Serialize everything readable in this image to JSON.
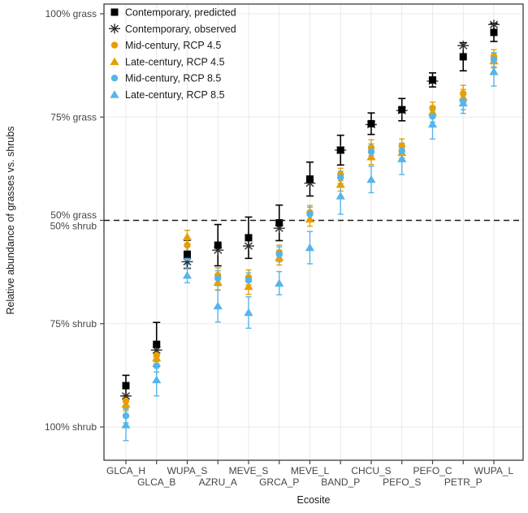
{
  "chart_data": {
    "type": "scatter",
    "title": "",
    "xlabel": "Ecosite",
    "ylabel": "Relative abundance of grasses vs. shrubs",
    "legend_position": "top-left-inside",
    "grid": "major-light-gray",
    "y_axis_unit": "percent grass (100 = all grass, 0 = all shrub)",
    "y_ticks": [
      {
        "pct": 100,
        "label": "100% grass"
      },
      {
        "pct": 75,
        "label": "75% grass"
      },
      {
        "pct": 50,
        "label": "50% grass\n50% shrub"
      },
      {
        "pct": 25,
        "label": "75% shrub"
      },
      {
        "pct": 0,
        "label": "100% shrub"
      }
    ],
    "reference_line": {
      "pct": 50,
      "style": "dashed",
      "color": "#1a1a1a"
    },
    "categories": [
      "GLCA_H",
      "GLCA_B",
      "WUPA_S",
      "AZRU_A",
      "MEVE_S",
      "GRCA_P",
      "MEVE_L",
      "BAND_P",
      "CHCU_S",
      "PEFO_S",
      "PEFO_C",
      "PETR_P",
      "WUPA_L"
    ],
    "series": [
      {
        "name": "Contemporary, predicted",
        "marker": "square",
        "color": "#000000",
        "values": [
          10,
          20,
          41.8,
          44,
          45.8,
          49.4,
          60,
          67,
          73.4,
          76.8,
          84,
          89.6,
          95.5
        ],
        "err": [
          2.5,
          5.3,
          3.4,
          5,
          5,
          4.3,
          4.1,
          3.6,
          2.6,
          2.7,
          1.7,
          3.4,
          2.2
        ]
      },
      {
        "name": "Contemporary, observed",
        "marker": "asterisk",
        "color": "#2e2e2e",
        "values": [
          7.5,
          18.6,
          40,
          42.8,
          43.8,
          48.1,
          59,
          67,
          73.2,
          76.6,
          83.7,
          92.3,
          97.4
        ],
        "err": null
      },
      {
        "name": "Mid-century, RCP 4.5",
        "marker": "circle",
        "color": "#E69F00",
        "values": [
          6.3,
          17.3,
          44,
          36.7,
          36.2,
          42.2,
          51.9,
          61.1,
          67.6,
          68,
          77.2,
          80.7,
          89.6
        ],
        "err": [
          1.7,
          1.5,
          1.6,
          1.8,
          1.8,
          1.8,
          1.7,
          1.5,
          1.9,
          1.7,
          1.4,
          2,
          1.7
        ]
      },
      {
        "name": "Late-century, RCP 4.5",
        "marker": "triangle",
        "color": "#E69F00",
        "values": [
          5.5,
          16.7,
          46,
          35,
          34,
          41,
          50.3,
          58.7,
          65.4,
          66.4,
          76.2,
          79.8,
          88.6
        ],
        "err": [
          1.6,
          1.4,
          1.6,
          1.9,
          1.9,
          1.8,
          1.7,
          1.6,
          1.9,
          1.7,
          1.4,
          1.9,
          1.7
        ]
      },
      {
        "name": "Mid-century, RCP 8.5",
        "marker": "circle",
        "color": "#56B4E9",
        "values": [
          2.7,
          14.8,
          41,
          36,
          35.5,
          41.8,
          51.5,
          60.4,
          66.6,
          66.8,
          75.2,
          78.8,
          88.9
        ],
        "err": [
          1.7,
          1.5,
          1.6,
          1.8,
          1.8,
          1.8,
          1.7,
          1.5,
          1.9,
          1.7,
          1.4,
          2,
          1.7
        ]
      },
      {
        "name": "Late-century, RCP 8.5",
        "marker": "triangle",
        "color": "#56B4E9",
        "values": [
          0.5,
          11.4,
          36.7,
          29.3,
          27.7,
          34.8,
          43.4,
          55.9,
          59.9,
          64.9,
          73.3,
          78.4,
          86
        ],
        "err": [
          3.8,
          3.9,
          1.8,
          3.9,
          3.8,
          2.8,
          3.9,
          4.4,
          3.2,
          3.8,
          3.6,
          2.5,
          3.5
        ]
      }
    ]
  }
}
